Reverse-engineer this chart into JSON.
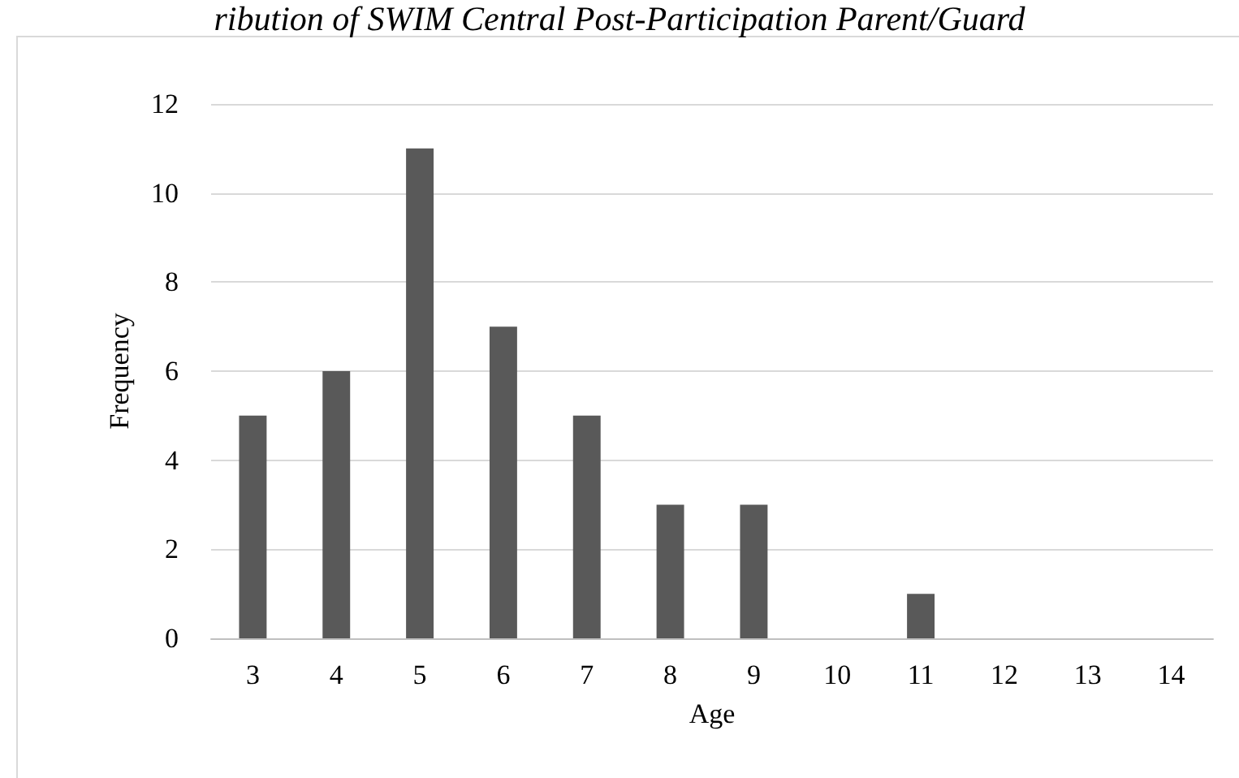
{
  "chart_data": {
    "type": "bar",
    "title": "ribution of SWIM Central Post-Participation Parent/Guard",
    "xlabel": "Age",
    "ylabel": "Frequency",
    "categories": [
      "3",
      "4",
      "5",
      "6",
      "7",
      "8",
      "9",
      "10",
      "11",
      "12",
      "13",
      "14"
    ],
    "values": [
      5,
      6,
      11,
      7,
      5,
      3,
      3,
      0,
      1,
      0,
      0,
      0
    ],
    "color": "#595959",
    "ylim": [
      0,
      12
    ],
    "yticks": [
      0,
      2,
      4,
      6,
      8,
      10,
      12
    ],
    "grid": "y"
  }
}
